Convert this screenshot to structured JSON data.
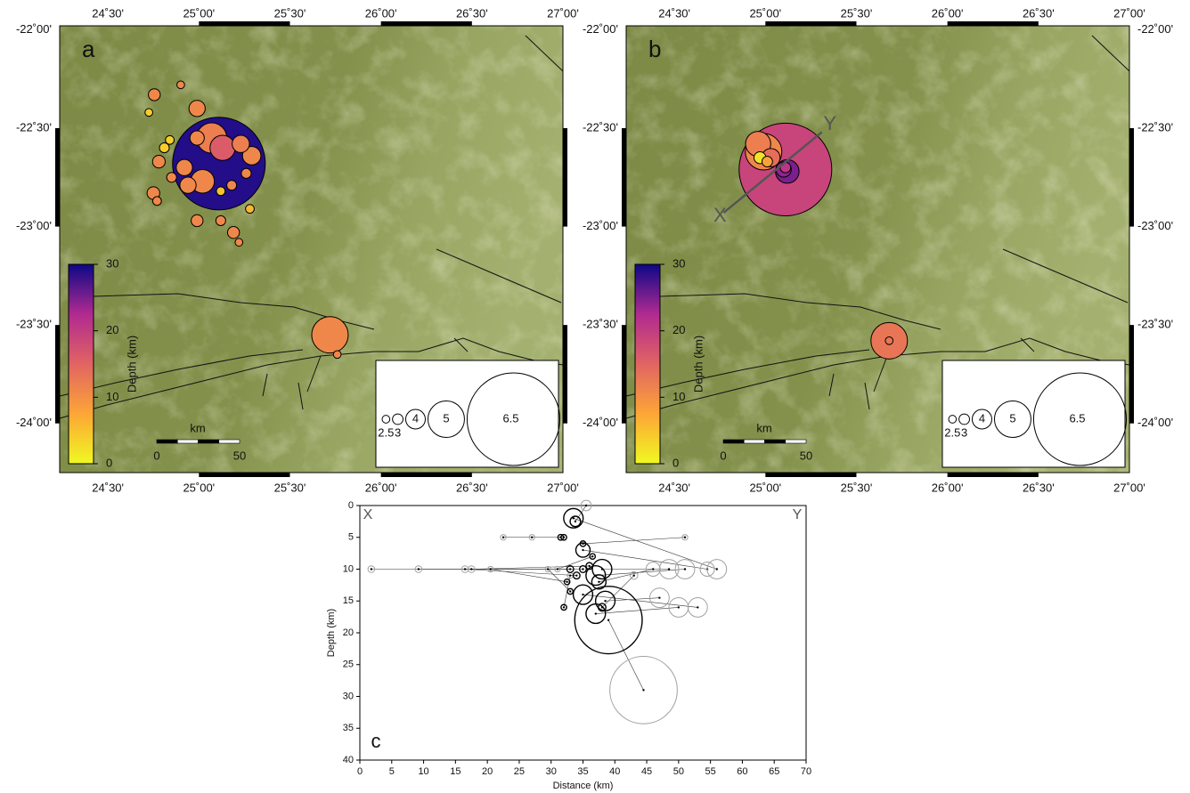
{
  "chart_data": [
    {
      "type": "map",
      "panel_label": "a",
      "xlim": [
        24.235,
        27.0
      ],
      "ylim": [
        -24.25,
        -21.98
      ],
      "xticks": [
        {
          "value": 24.5,
          "label": "24˚30'"
        },
        {
          "value": 25.0,
          "label": "25˚00'"
        },
        {
          "value": 25.5,
          "label": "25˚30'"
        },
        {
          "value": 26.0,
          "label": "26˚00'"
        },
        {
          "value": 26.5,
          "label": "26˚30'"
        },
        {
          "value": 27.0,
          "label": "27˚00'"
        }
      ],
      "yticks": [
        {
          "value": -22.0,
          "label": "-22˚00'"
        },
        {
          "value": -22.5,
          "label": "-22˚30'"
        },
        {
          "value": -23.0,
          "label": "-23˚00'"
        },
        {
          "value": -23.5,
          "label": "-23˚30'"
        },
        {
          "value": -24.0,
          "label": "-24˚00'"
        }
      ],
      "colorbar": {
        "label": "Depth (km)",
        "lim": [
          0,
          30
        ],
        "ticks": [
          0,
          10,
          20,
          30
        ],
        "colors": [
          "#f0f921",
          "#fca636",
          "#e16462",
          "#b12a90",
          "#0d0887"
        ]
      },
      "scale_bar": {
        "label": "km",
        "ticks": [
          0,
          50
        ]
      },
      "size_legend": [
        2.5,
        3,
        4,
        5,
        6.5
      ],
      "events": {
        "x": [
          25.11,
          25.72,
          25.07,
          25.13,
          25.02,
          25.29,
          25.23,
          24.99,
          24.92,
          24.94,
          24.99,
          24.78,
          24.75,
          24.755,
          24.99,
          25.19,
          24.85,
          24.81,
          25.26,
          25.18,
          25.12,
          24.77,
          25.28,
          24.84,
          25.12,
          24.9,
          24.725,
          25.22,
          25.76
        ],
        "values": [
          -22.68,
          -23.55,
          -22.55,
          -22.6,
          -22.77,
          -22.64,
          -22.58,
          -22.4,
          -22.7,
          -22.79,
          -22.55,
          -22.67,
          -22.83,
          -22.33,
          -22.97,
          -23.03,
          -22.75,
          -22.6,
          -22.73,
          -22.79,
          -22.97,
          -22.87,
          -22.91,
          -22.56,
          -22.82,
          -22.28,
          -22.42,
          -23.08,
          -23.65
        ],
        "sizes": [
          6.5,
          5.0,
          4.7,
          4.4,
          4.3,
          3.9,
          3.8,
          3.7,
          3.7,
          3.7,
          3.5,
          3.3,
          3.3,
          3.2,
          3.2,
          3.2,
          2.9,
          2.9,
          2.9,
          2.9,
          2.9,
          2.7,
          2.7,
          2.7,
          2.7,
          2.5,
          2.5,
          2.5,
          2.5
        ],
        "depths": [
          29,
          11,
          12,
          16,
          11,
          11,
          12,
          11,
          11,
          11,
          11,
          11,
          11,
          11,
          11,
          11,
          11,
          4,
          11,
          11,
          11,
          11,
          6,
          4,
          5,
          11,
          4,
          11,
          11
        ]
      }
    },
    {
      "type": "map",
      "panel_label": "b",
      "xlim": [
        24.235,
        27.0
      ],
      "ylim": [
        -24.25,
        -21.98
      ],
      "xticks": [
        {
          "value": 24.5,
          "label": "24˚30'"
        },
        {
          "value": 25.0,
          "label": "25˚00'"
        },
        {
          "value": 25.5,
          "label": "25˚30'"
        },
        {
          "value": 26.0,
          "label": "26˚00'"
        },
        {
          "value": 26.5,
          "label": "26˚30'"
        },
        {
          "value": 27.0,
          "label": "27˚00'"
        }
      ],
      "yticks": [
        {
          "value": -22.0,
          "label": "-22˚00'"
        },
        {
          "value": -22.5,
          "label": "-22˚30'"
        },
        {
          "value": -23.0,
          "label": "-23˚00'"
        },
        {
          "value": -23.5,
          "label": "-23˚30'"
        },
        {
          "value": -24.0,
          "label": "-24˚00'"
        }
      ],
      "colorbar": {
        "label": "Depth (km)",
        "lim": [
          0,
          30
        ],
        "ticks": [
          0,
          10,
          20,
          30
        ],
        "colors": [
          "#f0f921",
          "#fca636",
          "#e16462",
          "#b12a90",
          "#0d0887"
        ]
      },
      "scale_bar": {
        "label": "km",
        "ticks": [
          0,
          50
        ]
      },
      "size_legend": [
        2.5,
        3,
        4,
        5,
        6.5
      ],
      "profile": {
        "start_label": "X",
        "end_label": "Y",
        "x": [
          24.77,
          25.31
        ],
        "values": [
          -22.93,
          -22.52
        ]
      },
      "events": {
        "x": [
          25.11,
          24.99,
          25.68,
          24.96,
          25.03,
          25.12,
          25.1,
          24.97,
          25.01,
          25.11,
          25.68
        ],
        "values": [
          -22.71,
          -22.62,
          -23.58,
          -22.58,
          -22.65,
          -22.72,
          -22.71,
          -22.65,
          -22.67,
          -22.7,
          -23.58
        ],
        "sizes": [
          6.5,
          5.0,
          5.0,
          4.4,
          3.9,
          4.3,
          3.6,
          3.2,
          3.0,
          3.0,
          2.5
        ],
        "depths": [
          19,
          11,
          13,
          12,
          14,
          25,
          24,
          2,
          8,
          21,
          13
        ]
      }
    },
    {
      "type": "scatter",
      "panel_label": "c",
      "start_label": "X",
      "end_label": "Y",
      "xlabel": "Distance (km)",
      "ylabel": "Depth (km)",
      "xlim": [
        0,
        70
      ],
      "ylim": [
        0,
        40
      ],
      "xticks": [
        0,
        5,
        10,
        15,
        20,
        25,
        30,
        35,
        40,
        45,
        50,
        55,
        60,
        65,
        70
      ],
      "yticks": [
        0,
        5,
        10,
        15,
        20,
        25,
        30,
        35,
        40
      ],
      "series": [
        {
          "color": "#a0a0a0",
          "x": [
            1.8,
            9.2,
            16.5,
            17.5,
            20.5,
            22.5,
            27,
            48.5,
            51,
            54.5,
            56,
            47,
            50,
            53,
            44.5,
            35.5,
            51,
            31,
            43,
            33,
            29.5,
            46
          ],
          "values": [
            10,
            10,
            10,
            10,
            10,
            5,
            5,
            10,
            10,
            10,
            10,
            14.5,
            16,
            16,
            29,
            0,
            5,
            10,
            11,
            11,
            10,
            10
          ],
          "sizes": [
            2.8,
            2.8,
            2.8,
            2.8,
            2.5,
            2.5,
            2.5,
            4.5,
            4.5,
            4,
            4.5,
            4.5,
            4.5,
            4.5,
            6.5,
            3.5,
            2.5,
            2.5,
            3,
            2.5,
            2.5,
            4
          ]
        },
        {
          "color": "#000000",
          "x": [
            33,
            35,
            34,
            36,
            32.5,
            32,
            31.5,
            38,
            37,
            35,
            33.5,
            38.5,
            37,
            35,
            39,
            33.8,
            35,
            36.5,
            38,
            32,
            33,
            37.5
          ],
          "values": [
            10,
            10,
            11,
            9.5,
            12,
            5,
            5,
            10,
            11,
            7,
            2,
            15,
            17,
            14,
            18,
            2.5,
            6,
            8,
            16,
            16,
            13.5,
            12
          ],
          "sizes": [
            2.8,
            2.8,
            2.8,
            2.8,
            2.5,
            2.5,
            2.5,
            4.5,
            4.5,
            4,
            4.5,
            4.5,
            4.5,
            4.5,
            6.5,
            3.5,
            2.5,
            2.5,
            3,
            2.5,
            2.5,
            4
          ]
        }
      ]
    }
  ]
}
